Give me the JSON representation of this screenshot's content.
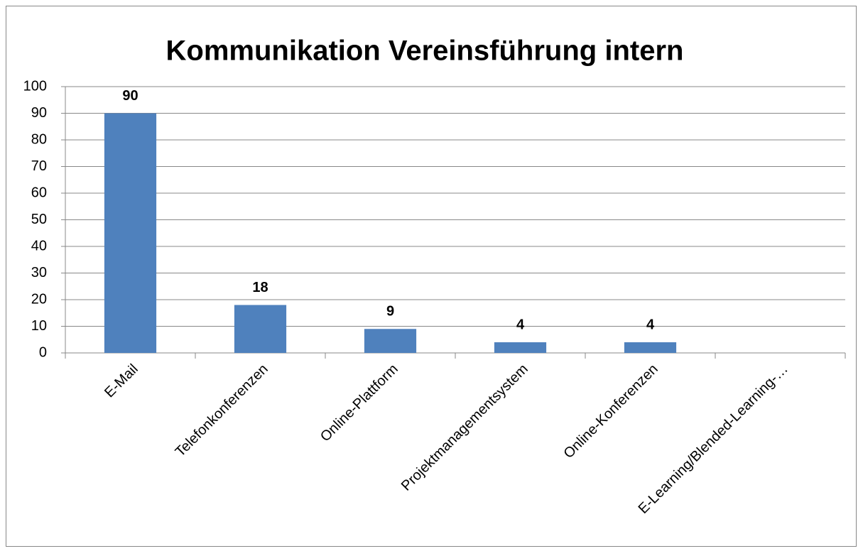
{
  "chart_data": {
    "type": "bar",
    "title": "Kommunikation Vereinsführung intern",
    "categories": [
      "E-Mail",
      "Telefonkonferenzen",
      "Online-Plattform",
      "Projektmanagementsystem",
      "Online-Konferenzen",
      "E-Learning/Blended-Learning-…"
    ],
    "values": [
      90,
      18,
      9,
      4,
      4,
      0
    ],
    "value_labels": [
      "90",
      "18",
      "9",
      "4",
      "4",
      null
    ],
    "color": "#4f81bd",
    "ylim": [
      0,
      100
    ],
    "yticks": [
      0,
      10,
      20,
      30,
      40,
      50,
      60,
      70,
      80,
      90,
      100
    ],
    "grid": true
  }
}
